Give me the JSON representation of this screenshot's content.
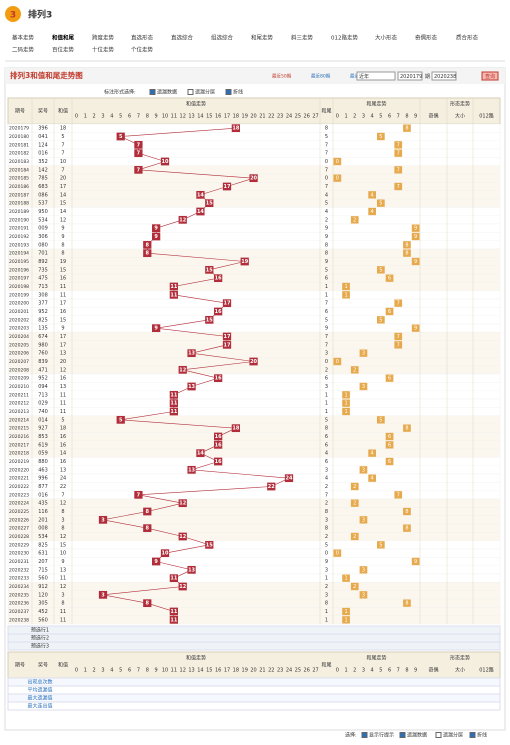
{
  "header": {
    "logo": "3",
    "title": "排列3"
  },
  "nav": {
    "row1": [
      "基本走势",
      "和值和尾",
      "跨度走势",
      "直选形态",
      "直选综合",
      "组选综合",
      "和尾走势",
      "斜三走势",
      "012路走势",
      "大小形态",
      "奇偶形态",
      "质合形态"
    ],
    "row2": [
      "二码走势",
      "百位走势",
      "十位走势",
      "个位走势"
    ]
  },
  "panel": {
    "title": "排列3和值和尾走势图",
    "links": [
      "最近50期",
      "最近80期",
      "最近120期"
    ],
    "select": "近年",
    "from": "2020179",
    "sep": "期",
    "to": "2020238",
    "button": "查询"
  },
  "options": {
    "label": "标注形式选择:",
    "items": [
      "遗漏数据",
      "遗漏分层",
      "折线"
    ]
  },
  "table": {
    "headers": {
      "issue": "期号",
      "number": "奖号",
      "sum": "和值",
      "sum_trend": "和值走势",
      "tail": "和尾",
      "tail_trend": "和尾走势",
      "shape": "形态走势",
      "shape_cols": [
        "奇偶",
        "大小",
        "012路"
      ]
    },
    "sum_columns": [
      0,
      1,
      2,
      3,
      4,
      5,
      6,
      7,
      8,
      9,
      10,
      11,
      12,
      13,
      14,
      15,
      16,
      17,
      18,
      19,
      20,
      21,
      22,
      23,
      24,
      25,
      26,
      27
    ],
    "tail_columns": [
      0,
      1,
      2,
      3,
      4,
      5,
      6,
      7,
      8,
      9
    ],
    "rows": [
      [
        "2020179",
        "396",
        18,
        8
      ],
      [
        "2020180",
        "041",
        5,
        5
      ],
      [
        "2020181",
        "124",
        7,
        7
      ],
      [
        "2020182",
        "016",
        7,
        7
      ],
      [
        "2020183",
        "352",
        10,
        0
      ],
      [
        "2020184",
        "142",
        7,
        7
      ],
      [
        "2020185",
        "785",
        20,
        0
      ],
      [
        "2020186",
        "683",
        17,
        7
      ],
      [
        "2020187",
        "086",
        14,
        4
      ],
      [
        "2020188",
        "537",
        15,
        5
      ],
      [
        "2020189",
        "950",
        14,
        4
      ],
      [
        "2020190",
        "534",
        12,
        2
      ],
      [
        "2020191",
        "009",
        9,
        9
      ],
      [
        "2020192",
        "306",
        9,
        9
      ],
      [
        "2020193",
        "080",
        8,
        8
      ],
      [
        "2020194",
        "701",
        8,
        8
      ],
      [
        "2020195",
        "892",
        19,
        9
      ],
      [
        "2020196",
        "735",
        15,
        5
      ],
      [
        "2020197",
        "475",
        16,
        6
      ],
      [
        "2020198",
        "713",
        11,
        1
      ],
      [
        "2020199",
        "308",
        11,
        1
      ],
      [
        "2020200",
        "377",
        17,
        7
      ],
      [
        "2020201",
        "952",
        16,
        6
      ],
      [
        "2020202",
        "825",
        15,
        5
      ],
      [
        "2020203",
        "135",
        9,
        9
      ],
      [
        "2020204",
        "674",
        17,
        7
      ],
      [
        "2020205",
        "980",
        17,
        7
      ],
      [
        "2020206",
        "760",
        13,
        3
      ],
      [
        "2020207",
        "839",
        20,
        0
      ],
      [
        "2020208",
        "471",
        12,
        2
      ],
      [
        "2020209",
        "952",
        16,
        6
      ],
      [
        "2020210",
        "094",
        13,
        3
      ],
      [
        "2020211",
        "713",
        11,
        1
      ],
      [
        "2020212",
        "029",
        11,
        1
      ],
      [
        "2020213",
        "740",
        11,
        1
      ],
      [
        "2020214",
        "014",
        5,
        5
      ],
      [
        "2020215",
        "927",
        18,
        8
      ],
      [
        "2020216",
        "853",
        16,
        6
      ],
      [
        "2020217",
        "619",
        16,
        6
      ],
      [
        "2020218",
        "059",
        14,
        4
      ],
      [
        "2020219",
        "880",
        16,
        6
      ],
      [
        "2020220",
        "463",
        13,
        3
      ],
      [
        "2020221",
        "996",
        24,
        4
      ],
      [
        "2020222",
        "877",
        22,
        2
      ],
      [
        "2020223",
        "016",
        7,
        7
      ],
      [
        "2020224",
        "435",
        12,
        2
      ],
      [
        "2020225",
        "116",
        8,
        8
      ],
      [
        "2020226",
        "201",
        3,
        3
      ],
      [
        "2020227",
        "008",
        8,
        8
      ],
      [
        "2020228",
        "534",
        12,
        2
      ],
      [
        "2020229",
        "825",
        15,
        5
      ],
      [
        "2020230",
        "631",
        10,
        0
      ],
      [
        "2020231",
        "207",
        9,
        9
      ],
      [
        "2020232",
        "715",
        13,
        3
      ],
      [
        "2020233",
        "560",
        11,
        1
      ],
      [
        "2020234",
        "912",
        12,
        2
      ],
      [
        "2020235",
        "120",
        3,
        3
      ],
      [
        "2020236",
        "305",
        8,
        8
      ],
      [
        "2020237",
        "452",
        11,
        1
      ],
      [
        "2020238",
        "560",
        11,
        1
      ]
    ],
    "preselect": [
      "预选行1",
      "预选行2",
      "预选行3"
    ],
    "stats": [
      "出现总次数",
      "平均遗漏值",
      "最大遗漏值",
      "最大连出值"
    ]
  },
  "footer": {
    "label": "选择:",
    "items": [
      "显示行提示",
      "遗漏数据",
      "遗漏分层",
      "折线"
    ]
  }
}
